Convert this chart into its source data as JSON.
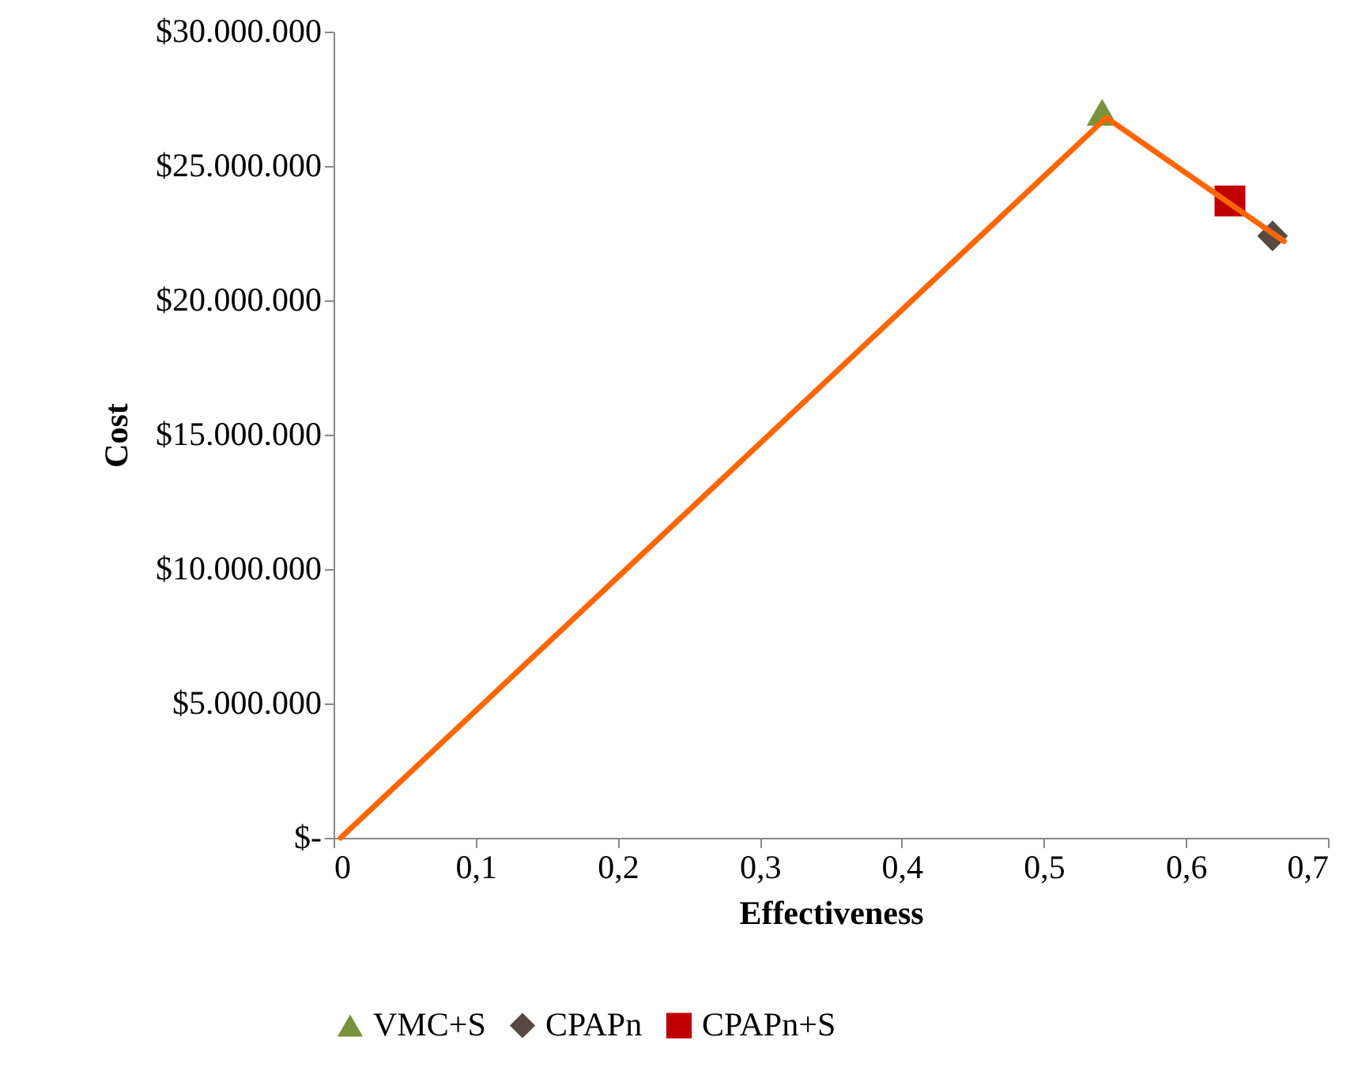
{
  "chart_data": {
    "type": "scatter",
    "xlabel": "Effectiveness",
    "ylabel": "Cost",
    "xlim": [
      0,
      0.7
    ],
    "xticks": [
      0,
      {
        "value": 0.1,
        "label": "0,1"
      },
      {
        "value": 0.2,
        "label": "0,2"
      },
      {
        "value": 0.3,
        "label": "0,3"
      },
      {
        "value": 0.4,
        "label": "0,4"
      },
      {
        "value": 0.5,
        "label": "0,5"
      },
      {
        "value": 0.6,
        "label": "0,6"
      },
      {
        "value": 0.7,
        "label": "0,7"
      }
    ],
    "ylim": [
      0,
      30000000
    ],
    "yticks": [
      {
        "value": 0,
        "label": "$-"
      },
      {
        "value": 5000000,
        "label": "$5.000.000"
      },
      {
        "value": 10000000,
        "label": "$10.000.000"
      },
      {
        "value": 15000000,
        "label": "$15.000.000"
      },
      {
        "value": 20000000,
        "label": "$20.000.000"
      },
      {
        "value": 25000000,
        "label": "$25.000.000"
      },
      {
        "value": 30000000,
        "label": "$30.000.000"
      }
    ],
    "grid": false,
    "legend": "bottom",
    "series": [
      {
        "type": "line",
        "color": "#ff6600",
        "x": [
          0.005,
          0.544,
          0.669
        ],
        "values": [
          0,
          26800000,
          22200000
        ],
        "marker": "none",
        "line_style": "solid"
      },
      {
        "name": "VMC+S",
        "color": "#77933c",
        "x": [
          0.541
        ],
        "values": [
          27000000
        ],
        "marker": "triangle"
      },
      {
        "name": "CPAPn",
        "color": "#584a42",
        "x": [
          0.661
        ],
        "values": [
          22400000
        ],
        "marker": "diamond"
      },
      {
        "name": "CPAPn+S",
        "color": "#c00000",
        "x": [
          0.631
        ],
        "values": [
          23700000
        ],
        "marker": "square"
      }
    ]
  }
}
